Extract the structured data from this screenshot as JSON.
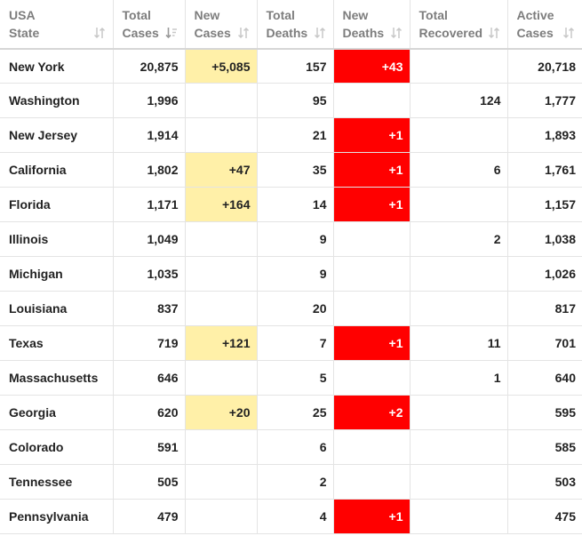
{
  "colors": {
    "new_cases_highlight": "#fff0a8",
    "new_deaths_highlight": "#ff0000",
    "header_text": "#7d7d7d",
    "grid_line": "#e4e4e4"
  },
  "columns": [
    {
      "key": "state",
      "label": "USA\nState",
      "sort_icon": "sort-arrows-icon"
    },
    {
      "key": "total_cases",
      "label": "Total\nCases",
      "sort_icon": "sort-desc-active-icon"
    },
    {
      "key": "new_cases",
      "label": "New\nCases",
      "sort_icon": "sort-arrows-icon"
    },
    {
      "key": "total_deaths",
      "label": "Total\nDeaths",
      "sort_icon": "sort-arrows-icon"
    },
    {
      "key": "new_deaths",
      "label": "New\nDeaths",
      "sort_icon": "sort-arrows-icon"
    },
    {
      "key": "total_recovered",
      "label": "Total\nRecovered",
      "sort_icon": "sort-arrows-icon"
    },
    {
      "key": "active_cases",
      "label": "Active\nCases",
      "sort_icon": "sort-arrows-icon"
    }
  ],
  "rows": [
    {
      "state": "New York",
      "total_cases": "20,875",
      "new_cases": "+5,085",
      "total_deaths": "157",
      "new_deaths": "+43",
      "total_recovered": "",
      "active_cases": "20,718"
    },
    {
      "state": "Washington",
      "total_cases": "1,996",
      "new_cases": "",
      "total_deaths": "95",
      "new_deaths": "",
      "total_recovered": "124",
      "active_cases": "1,777"
    },
    {
      "state": "New Jersey",
      "total_cases": "1,914",
      "new_cases": "",
      "total_deaths": "21",
      "new_deaths": "+1",
      "total_recovered": "",
      "active_cases": "1,893"
    },
    {
      "state": "California",
      "total_cases": "1,802",
      "new_cases": "+47",
      "total_deaths": "35",
      "new_deaths": "+1",
      "total_recovered": "6",
      "active_cases": "1,761"
    },
    {
      "state": "Florida",
      "total_cases": "1,171",
      "new_cases": "+164",
      "total_deaths": "14",
      "new_deaths": "+1",
      "total_recovered": "",
      "active_cases": "1,157"
    },
    {
      "state": "Illinois",
      "total_cases": "1,049",
      "new_cases": "",
      "total_deaths": "9",
      "new_deaths": "",
      "total_recovered": "2",
      "active_cases": "1,038"
    },
    {
      "state": "Michigan",
      "total_cases": "1,035",
      "new_cases": "",
      "total_deaths": "9",
      "new_deaths": "",
      "total_recovered": "",
      "active_cases": "1,026"
    },
    {
      "state": "Louisiana",
      "total_cases": "837",
      "new_cases": "",
      "total_deaths": "20",
      "new_deaths": "",
      "total_recovered": "",
      "active_cases": "817"
    },
    {
      "state": "Texas",
      "total_cases": "719",
      "new_cases": "+121",
      "total_deaths": "7",
      "new_deaths": "+1",
      "total_recovered": "11",
      "active_cases": "701"
    },
    {
      "state": "Massachusetts",
      "total_cases": "646",
      "new_cases": "",
      "total_deaths": "5",
      "new_deaths": "",
      "total_recovered": "1",
      "active_cases": "640"
    },
    {
      "state": "Georgia",
      "total_cases": "620",
      "new_cases": "+20",
      "total_deaths": "25",
      "new_deaths": "+2",
      "total_recovered": "",
      "active_cases": "595"
    },
    {
      "state": "Colorado",
      "total_cases": "591",
      "new_cases": "",
      "total_deaths": "6",
      "new_deaths": "",
      "total_recovered": "",
      "active_cases": "585"
    },
    {
      "state": "Tennessee",
      "total_cases": "505",
      "new_cases": "",
      "total_deaths": "2",
      "new_deaths": "",
      "total_recovered": "",
      "active_cases": "503"
    },
    {
      "state": "Pennsylvania",
      "total_cases": "479",
      "new_cases": "",
      "total_deaths": "4",
      "new_deaths": "+1",
      "total_recovered": "",
      "active_cases": "475"
    }
  ]
}
